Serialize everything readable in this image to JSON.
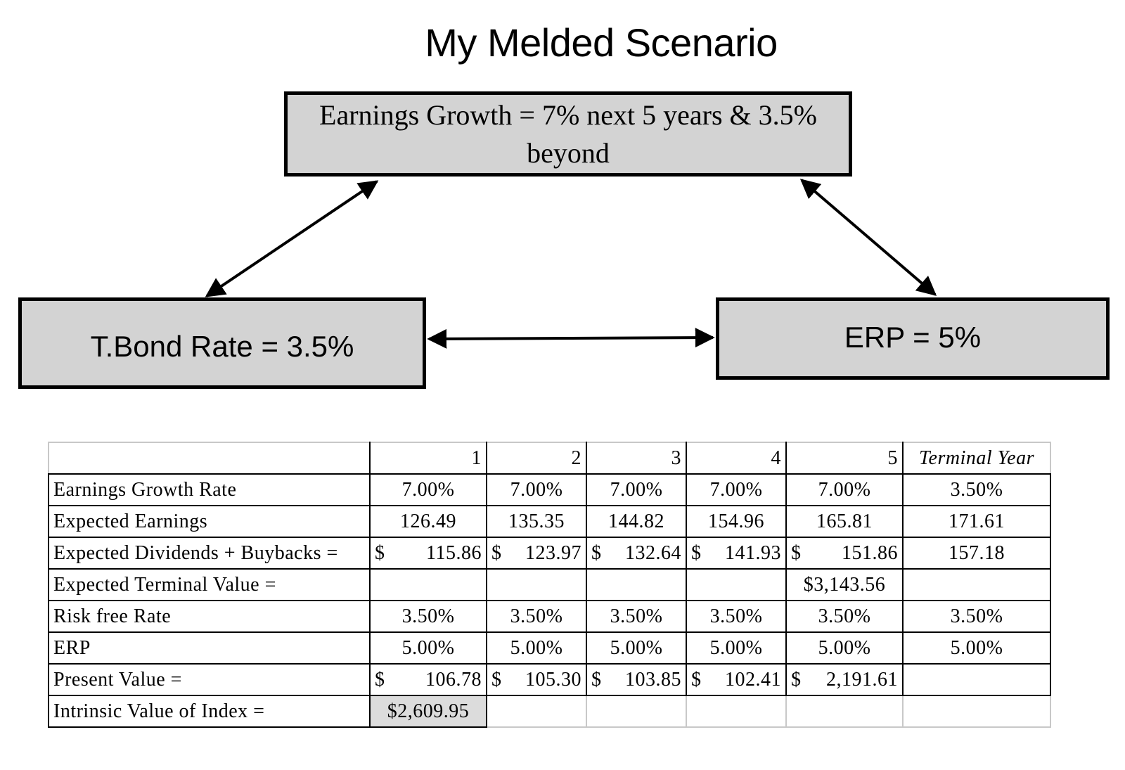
{
  "title": "My Melded Scenario",
  "diagram": {
    "earnings_box": "Earnings Growth = 7% next 5 years & 3.5% beyond",
    "tbond_box": "T.Bond Rate = 3.5%",
    "erp_box": "ERP = 5%"
  },
  "table": {
    "columns": [
      "1",
      "2",
      "3",
      "4",
      "5",
      "Terminal Year"
    ],
    "rows": {
      "growth": {
        "label": "Earnings Growth Rate",
        "values": [
          "7.00%",
          "7.00%",
          "7.00%",
          "7.00%",
          "7.00%",
          "3.50%"
        ]
      },
      "earnings": {
        "label": "Expected Earnings",
        "values": [
          "126.49",
          "135.35",
          "144.82",
          "154.96",
          "165.81",
          "171.61"
        ]
      },
      "dividends": {
        "label": "Expected Dividends + Buybacks =",
        "currency": "$",
        "values": [
          "115.86",
          "123.97",
          "132.64",
          "141.93",
          "151.86"
        ],
        "terminal": "157.18"
      },
      "terminal_value": {
        "label": "Expected Terminal Value =",
        "value_y5": "$3,143.56"
      },
      "rf": {
        "label": "Risk free Rate",
        "values": [
          "3.50%",
          "3.50%",
          "3.50%",
          "3.50%",
          "3.50%",
          "3.50%"
        ]
      },
      "erp": {
        "label": "ERP",
        "values": [
          "5.00%",
          "5.00%",
          "5.00%",
          "5.00%",
          "5.00%",
          "5.00%"
        ]
      },
      "pv": {
        "label": "Present Value =",
        "currency": "$",
        "values": [
          "106.78",
          "105.30",
          "103.85",
          "102.41",
          "2,191.61"
        ]
      },
      "intrinsic": {
        "label": "Intrinsic Value of Index =",
        "value": "$2,609.95"
      }
    }
  }
}
